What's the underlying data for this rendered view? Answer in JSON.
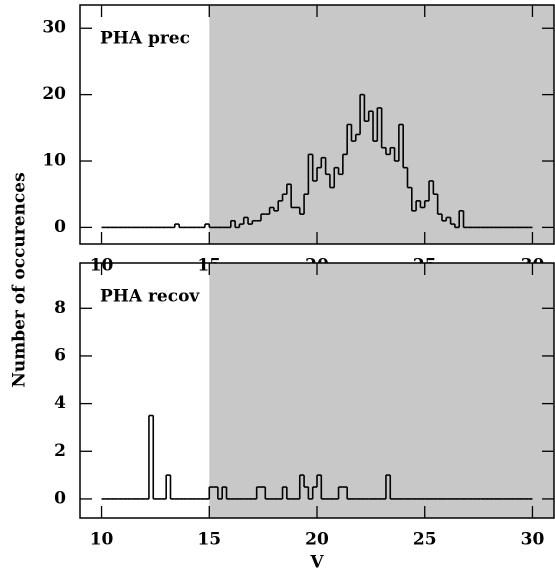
{
  "chart_data": [
    {
      "type": "histogram",
      "label": "PHA prec",
      "ylabel": "Number of occurences",
      "shade_from": 15,
      "shade_color": "#c8c8c8",
      "color": "#000000",
      "xlim": [
        9,
        31
      ],
      "ylim": [
        -2.5,
        33.5
      ],
      "xticks": [
        10,
        15,
        20,
        25,
        30
      ],
      "yticks": [
        0,
        10,
        20,
        30
      ],
      "bins": [
        10,
        10.2,
        10.4,
        10.6,
        10.8,
        11,
        11.2,
        11.4,
        11.6,
        11.8,
        12,
        12.2,
        12.4,
        12.6,
        12.8,
        13,
        13.2,
        13.4,
        13.6,
        13.8,
        14,
        14.2,
        14.4,
        14.6,
        14.8,
        15,
        15.2,
        15.4,
        15.6,
        15.8,
        16,
        16.2,
        16.4,
        16.6,
        16.8,
        17,
        17.2,
        17.4,
        17.6,
        17.8,
        18,
        18.2,
        18.4,
        18.6,
        18.8,
        19,
        19.2,
        19.4,
        19.6,
        19.8,
        20,
        20.2,
        20.4,
        20.6,
        20.8,
        21,
        21.2,
        21.4,
        21.6,
        21.8,
        22,
        22.2,
        22.4,
        22.6,
        22.8,
        23,
        23.2,
        23.4,
        23.6,
        23.8,
        24,
        24.2,
        24.4,
        24.6,
        24.8,
        25,
        25.2,
        25.4,
        25.6,
        25.8,
        26,
        26.2,
        26.4,
        26.6,
        26.8,
        27,
        27.2,
        27.4,
        27.6,
        27.8,
        28,
        28.2,
        28.4,
        28.6,
        28.8,
        29,
        29.2,
        29.4,
        29.6,
        29.8,
        30
      ],
      "values": [
        0,
        0,
        0,
        0,
        0,
        0,
        0,
        0,
        0,
        0,
        0,
        0,
        0,
        0,
        0,
        0,
        0,
        0.5,
        0,
        0,
        0,
        0,
        0,
        0,
        0.5,
        0,
        0,
        0,
        0,
        0,
        1,
        0,
        0.5,
        1.5,
        0.5,
        1,
        1,
        2,
        2,
        3,
        2.5,
        4,
        5,
        6.5,
        3,
        3,
        2,
        5,
        11,
        7,
        9,
        10.5,
        8,
        6,
        9,
        8,
        11,
        15.5,
        13,
        14,
        20,
        16,
        17.5,
        13,
        18,
        12,
        11,
        12,
        10,
        15.5,
        9,
        6,
        2.5,
        4,
        3,
        4,
        7,
        5,
        2,
        1,
        1.5,
        0.5,
        0,
        2.5,
        0,
        0,
        0,
        0,
        0,
        0,
        0,
        0,
        0,
        0,
        0,
        0,
        0,
        0,
        0,
        0
      ]
    },
    {
      "type": "histogram",
      "label": "PHA recov",
      "xlabel": "V",
      "shade_from": 15,
      "shade_color": "#c8c8c8",
      "color": "#000000",
      "xlim": [
        9,
        31
      ],
      "ylim": [
        -0.8,
        9.9
      ],
      "xticks": [
        10,
        15,
        20,
        25,
        30
      ],
      "yticks": [
        0,
        2,
        4,
        6,
        8
      ],
      "bins": [
        10,
        10.2,
        10.4,
        10.6,
        10.8,
        11,
        11.2,
        11.4,
        11.6,
        11.8,
        12,
        12.2,
        12.4,
        12.6,
        12.8,
        13,
        13.2,
        13.4,
        13.6,
        13.8,
        14,
        14.2,
        14.4,
        14.6,
        14.8,
        15,
        15.2,
        15.4,
        15.6,
        15.8,
        16,
        16.2,
        16.4,
        16.6,
        16.8,
        17,
        17.2,
        17.4,
        17.6,
        17.8,
        18,
        18.2,
        18.4,
        18.6,
        18.8,
        19,
        19.2,
        19.4,
        19.6,
        19.8,
        20,
        20.2,
        20.4,
        20.6,
        20.8,
        21,
        21.2,
        21.4,
        21.6,
        21.8,
        22,
        22.2,
        22.4,
        22.6,
        22.8,
        23,
        23.2,
        23.4,
        23.6,
        23.8,
        24,
        24.2,
        24.4,
        24.6,
        24.8,
        25,
        25.2,
        25.4,
        25.6,
        25.8,
        26,
        26.2,
        26.4,
        26.6,
        26.8,
        27,
        27.2,
        27.4,
        27.6,
        27.8,
        28,
        28.2,
        28.4,
        28.6,
        28.8,
        29,
        29.2,
        29.4,
        29.6,
        29.8,
        30
      ],
      "values": [
        0,
        0,
        0,
        0,
        0,
        0,
        0,
        0,
        0,
        0,
        0,
        3.5,
        0,
        0,
        0,
        1,
        0,
        0,
        0,
        0,
        0,
        0,
        0,
        0,
        0,
        0.5,
        0.5,
        0,
        0.5,
        0,
        0,
        0,
        0,
        0,
        0,
        0,
        0.5,
        0.5,
        0,
        0,
        0,
        0,
        0.5,
        0,
        0,
        0,
        1,
        0.5,
        0,
        0.5,
        1,
        0,
        0,
        0,
        0,
        0.5,
        0.5,
        0,
        0,
        0,
        0,
        0,
        0,
        0,
        0,
        0,
        1,
        0,
        0,
        0,
        0,
        0,
        0,
        0,
        0,
        0,
        0,
        0,
        0,
        0,
        0,
        0,
        0,
        0,
        0,
        0,
        0,
        0,
        0,
        0,
        0,
        0,
        0,
        0,
        0,
        0,
        0,
        0,
        0,
        0
      ]
    }
  ]
}
